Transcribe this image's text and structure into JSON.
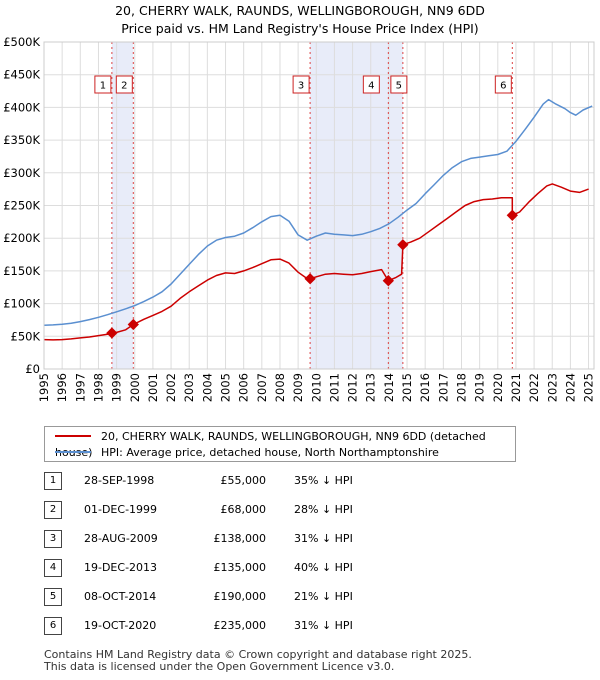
{
  "title_line1": "20, CHERRY WALK, RAUNDS, WELLINGBOROUGH, NN9 6DD",
  "title_line2": "Price paid vs. HM Land Registry's House Price Index (HPI)",
  "chart_data": {
    "type": "line",
    "title": "20, CHERRY WALK, RAUNDS, WELLINGBOROUGH, NN9 6DD — Price paid vs. HM Land Registry's House Price Index (HPI)",
    "ylim": [
      0,
      500000
    ],
    "xlim": [
      1995,
      2025.3
    ],
    "y_ticks": [
      {
        "value": 0,
        "label": "£0"
      },
      {
        "value": 50000,
        "label": "£50K"
      },
      {
        "value": 100000,
        "label": "£100K"
      },
      {
        "value": 150000,
        "label": "£150K"
      },
      {
        "value": 200000,
        "label": "£200K"
      },
      {
        "value": 250000,
        "label": "£250K"
      },
      {
        "value": 300000,
        "label": "£300K"
      },
      {
        "value": 350000,
        "label": "£350K"
      },
      {
        "value": 400000,
        "label": "£400K"
      },
      {
        "value": 450000,
        "label": "£450K"
      },
      {
        "value": 500000,
        "label": "£500K"
      }
    ],
    "x_ticks": [
      "1995",
      "1996",
      "1997",
      "1998",
      "1999",
      "2000",
      "2001",
      "2002",
      "2003",
      "2004",
      "2005",
      "2006",
      "2007",
      "2008",
      "2009",
      "2010",
      "2011",
      "2012",
      "2013",
      "2014",
      "2015",
      "2016",
      "2017",
      "2018",
      "2019",
      "2020",
      "2021",
      "2022",
      "2023",
      "2024",
      "2025"
    ],
    "grid": true,
    "shaded_spans": [
      [
        1998.74,
        1999.92
      ],
      [
        2009.66,
        2014.77
      ]
    ],
    "series": [
      {
        "name": "20, CHERRY WALK, RAUNDS, WELLINGBOROUGH, NN9 6DD (detached house)",
        "color": "#cc0000",
        "points": [
          [
            1995.0,
            45000
          ],
          [
            1995.5,
            44500
          ],
          [
            1996.0,
            45000
          ],
          [
            1996.5,
            46000
          ],
          [
            1997.0,
            47500
          ],
          [
            1997.5,
            49000
          ],
          [
            1998.0,
            51000
          ],
          [
            1998.5,
            53000
          ],
          [
            1998.74,
            55000
          ],
          [
            1999.0,
            56000
          ],
          [
            1999.5,
            60000
          ],
          [
            1999.92,
            68000
          ],
          [
            2000.5,
            76000
          ],
          [
            2001.0,
            82000
          ],
          [
            2001.5,
            88000
          ],
          [
            2002.0,
            96000
          ],
          [
            2002.5,
            108000
          ],
          [
            2003.0,
            118000
          ],
          [
            2003.5,
            127000
          ],
          [
            2004.0,
            136000
          ],
          [
            2004.5,
            143000
          ],
          [
            2005.0,
            147000
          ],
          [
            2005.5,
            146000
          ],
          [
            2006.0,
            150000
          ],
          [
            2006.5,
            155000
          ],
          [
            2007.0,
            161000
          ],
          [
            2007.5,
            167000
          ],
          [
            2008.0,
            168000
          ],
          [
            2008.5,
            162000
          ],
          [
            2009.0,
            148000
          ],
          [
            2009.4,
            140000
          ],
          [
            2009.66,
            138000
          ],
          [
            2010.0,
            141000
          ],
          [
            2010.5,
            145000
          ],
          [
            2011.0,
            146000
          ],
          [
            2011.5,
            145000
          ],
          [
            2012.0,
            144000
          ],
          [
            2012.5,
            146000
          ],
          [
            2013.0,
            149000
          ],
          [
            2013.6,
            152000
          ],
          [
            2013.97,
            135000
          ],
          [
            2014.4,
            140000
          ],
          [
            2014.7,
            145000
          ],
          [
            2014.77,
            190000
          ],
          [
            2015.2,
            194000
          ],
          [
            2015.7,
            200000
          ],
          [
            2016.2,
            210000
          ],
          [
            2016.7,
            220000
          ],
          [
            2017.2,
            230000
          ],
          [
            2017.7,
            240000
          ],
          [
            2018.2,
            250000
          ],
          [
            2018.7,
            256000
          ],
          [
            2019.2,
            259000
          ],
          [
            2019.7,
            260000
          ],
          [
            2020.2,
            262000
          ],
          [
            2020.6,
            262000
          ],
          [
            2020.8,
            262000
          ],
          [
            2020.8,
            235000
          ],
          [
            2021.2,
            240000
          ],
          [
            2021.7,
            255000
          ],
          [
            2022.2,
            268000
          ],
          [
            2022.7,
            280000
          ],
          [
            2023.0,
            283000
          ],
          [
            2023.5,
            278000
          ],
          [
            2024.0,
            272000
          ],
          [
            2024.5,
            270000
          ],
          [
            2025.0,
            275000
          ]
        ]
      },
      {
        "name": "HPI: Average price, detached house, North Northamptonshire",
        "color": "#5a8fd0",
        "points": [
          [
            1995.0,
            67000
          ],
          [
            1995.5,
            67500
          ],
          [
            1996.0,
            68500
          ],
          [
            1996.5,
            70000
          ],
          [
            1997.0,
            72500
          ],
          [
            1997.5,
            75500
          ],
          [
            1998.0,
            79000
          ],
          [
            1998.5,
            83000
          ],
          [
            1999.0,
            87500
          ],
          [
            1999.5,
            92000
          ],
          [
            2000.0,
            97000
          ],
          [
            2000.5,
            103000
          ],
          [
            2001.0,
            110000
          ],
          [
            2001.5,
            118000
          ],
          [
            2002.0,
            130000
          ],
          [
            2002.5,
            145000
          ],
          [
            2003.0,
            160000
          ],
          [
            2003.5,
            175000
          ],
          [
            2004.0,
            188000
          ],
          [
            2004.5,
            197000
          ],
          [
            2005.0,
            201000
          ],
          [
            2005.5,
            203000
          ],
          [
            2006.0,
            208000
          ],
          [
            2006.5,
            216000
          ],
          [
            2007.0,
            225000
          ],
          [
            2007.5,
            233000
          ],
          [
            2008.0,
            235000
          ],
          [
            2008.5,
            226000
          ],
          [
            2009.0,
            205000
          ],
          [
            2009.5,
            197000
          ],
          [
            2010.0,
            203000
          ],
          [
            2010.5,
            208000
          ],
          [
            2011.0,
            206000
          ],
          [
            2011.5,
            205000
          ],
          [
            2012.0,
            204000
          ],
          [
            2012.5,
            206000
          ],
          [
            2013.0,
            210000
          ],
          [
            2013.5,
            215000
          ],
          [
            2014.0,
            222000
          ],
          [
            2014.5,
            232000
          ],
          [
            2015.0,
            243000
          ],
          [
            2015.5,
            253000
          ],
          [
            2016.0,
            268000
          ],
          [
            2016.5,
            282000
          ],
          [
            2017.0,
            296000
          ],
          [
            2017.5,
            308000
          ],
          [
            2018.0,
            317000
          ],
          [
            2018.5,
            322000
          ],
          [
            2019.0,
            324000
          ],
          [
            2019.5,
            326000
          ],
          [
            2020.0,
            328000
          ],
          [
            2020.5,
            333000
          ],
          [
            2021.0,
            348000
          ],
          [
            2021.5,
            366000
          ],
          [
            2022.0,
            385000
          ],
          [
            2022.5,
            405000
          ],
          [
            2022.8,
            412000
          ],
          [
            2023.2,
            405000
          ],
          [
            2023.7,
            398000
          ],
          [
            2024.0,
            392000
          ],
          [
            2024.3,
            388000
          ],
          [
            2024.7,
            396000
          ],
          [
            2025.2,
            402000
          ]
        ]
      }
    ],
    "sale_markers": [
      {
        "label": "1",
        "x": 1998.74,
        "y": 55000
      },
      {
        "label": "2",
        "x": 1999.92,
        "y": 68000
      },
      {
        "label": "3",
        "x": 2009.66,
        "y": 138000
      },
      {
        "label": "4",
        "x": 2013.97,
        "y": 135000
      },
      {
        "label": "5",
        "x": 2014.77,
        "y": 190000
      },
      {
        "label": "6",
        "x": 2020.8,
        "y": 235000
      }
    ]
  },
  "legend": {
    "property_label": "20, CHERRY WALK, RAUNDS, WELLINGBOROUGH, NN9 6DD (detached house)",
    "hpi_label": "HPI: Average price, detached house, North Northamptonshire",
    "property_color": "#cc0000",
    "hpi_color": "#5a8fd0"
  },
  "sales": [
    {
      "num": "1",
      "date": "28-SEP-1998",
      "price": "£55,000",
      "hpi": "35% ↓ HPI"
    },
    {
      "num": "2",
      "date": "01-DEC-1999",
      "price": "£68,000",
      "hpi": "28% ↓ HPI"
    },
    {
      "num": "3",
      "date": "28-AUG-2009",
      "price": "£138,000",
      "hpi": "31% ↓ HPI"
    },
    {
      "num": "4",
      "date": "19-DEC-2013",
      "price": "£135,000",
      "hpi": "40% ↓ HPI"
    },
    {
      "num": "5",
      "date": "08-OCT-2014",
      "price": "£190,000",
      "hpi": "21% ↓ HPI"
    },
    {
      "num": "6",
      "date": "19-OCT-2020",
      "price": "£235,000",
      "hpi": "31% ↓ HPI"
    }
  ],
  "footer": {
    "line1": "Contains HM Land Registry data © Crown copyright and database right 2025.",
    "line2": "This data is licensed under the Open Government Licence v3.0."
  }
}
